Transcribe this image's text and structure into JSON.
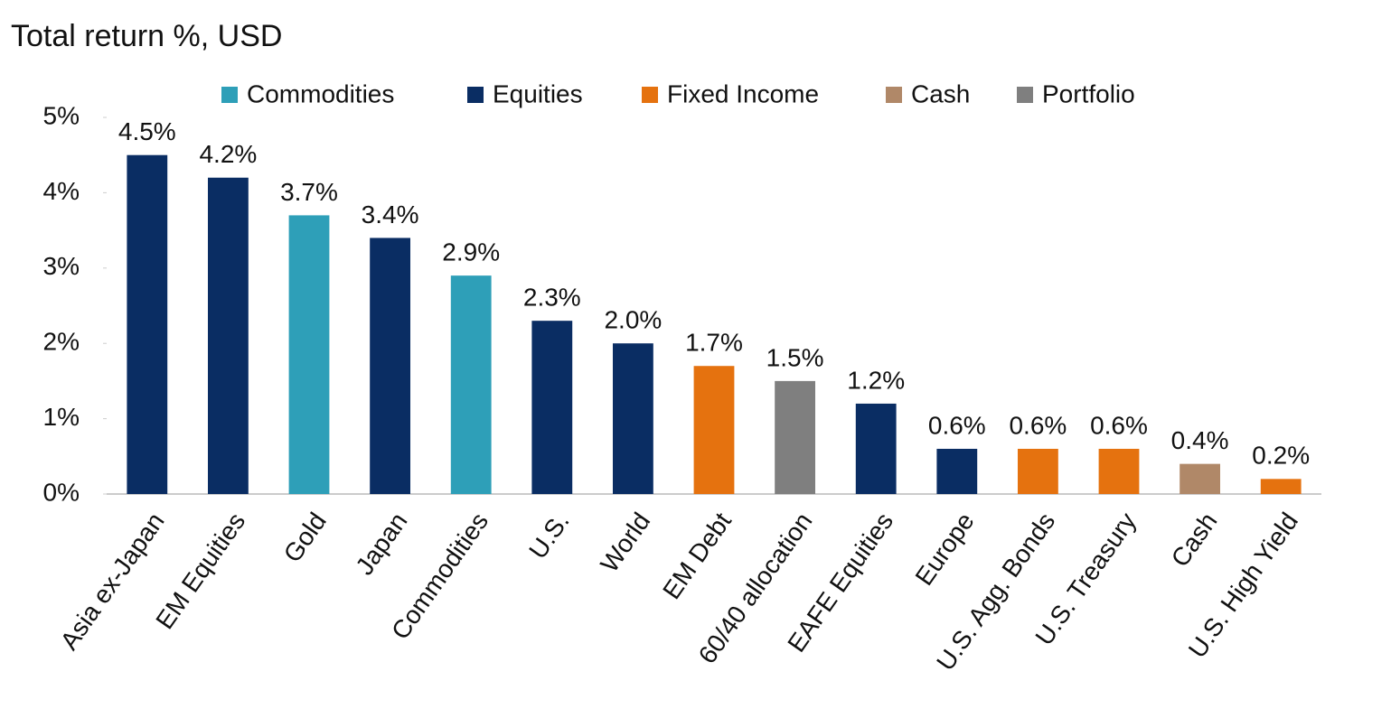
{
  "chart_data": {
    "type": "bar",
    "title": "Total return %, USD",
    "categories": [
      "Asia ex-Japan",
      "EM Equities",
      "Gold",
      "Japan",
      "Commodities",
      "U.S.",
      "World",
      "EM Debt",
      "60/40 allocation",
      "EAFE Equities",
      "Europe",
      "U.S. Agg. Bonds",
      "U.S. Treasury",
      "Cash",
      "U.S. High Yield"
    ],
    "series": [
      {
        "name": "Commodities",
        "color": "#2e9fb8",
        "values": [
          null,
          null,
          3.7,
          null,
          2.9,
          null,
          null,
          null,
          null,
          null,
          null,
          null,
          null,
          null,
          null
        ],
        "value_labels": [
          null,
          null,
          "3.7%",
          null,
          "2.9%",
          null,
          null,
          null,
          null,
          null,
          null,
          null,
          null,
          null,
          null
        ]
      },
      {
        "name": "Equities",
        "color": "#0a2d63",
        "values": [
          4.5,
          4.2,
          null,
          3.4,
          null,
          2.3,
          2.0,
          null,
          null,
          1.2,
          0.6,
          null,
          null,
          null,
          null
        ],
        "value_labels": [
          "4.5%",
          "4.2%",
          null,
          "3.4%",
          null,
          "2.3%",
          "2.0%",
          null,
          null,
          "1.2%",
          "0.6%",
          null,
          null,
          null,
          null
        ]
      },
      {
        "name": "Fixed Income",
        "color": "#e5720f",
        "values": [
          null,
          null,
          null,
          null,
          null,
          null,
          null,
          1.7,
          null,
          null,
          null,
          0.6,
          0.6,
          null,
          0.2
        ],
        "value_labels": [
          null,
          null,
          null,
          null,
          null,
          null,
          null,
          "1.7%",
          null,
          null,
          null,
          "0.6%",
          "0.6%",
          null,
          "0.2%"
        ]
      },
      {
        "name": "Cash",
        "color": "#b08868",
        "values": [
          null,
          null,
          null,
          null,
          null,
          null,
          null,
          null,
          null,
          null,
          null,
          null,
          null,
          0.4,
          null
        ],
        "value_labels": [
          null,
          null,
          null,
          null,
          null,
          null,
          null,
          null,
          null,
          null,
          null,
          null,
          null,
          "0.4%",
          null
        ]
      },
      {
        "name": "Portfolio",
        "color": "#7f7f7f",
        "values": [
          null,
          null,
          null,
          null,
          null,
          null,
          null,
          null,
          1.5,
          null,
          null,
          null,
          null,
          null,
          null
        ],
        "value_labels": [
          null,
          null,
          null,
          null,
          null,
          null,
          null,
          null,
          "1.5%",
          null,
          null,
          null,
          null,
          null,
          null
        ]
      }
    ],
    "ylim": [
      0,
      5
    ],
    "yticks": [
      {
        "value": 0,
        "label": "0%"
      },
      {
        "value": 1,
        "label": "1%"
      },
      {
        "value": 2,
        "label": "2%"
      },
      {
        "value": 3,
        "label": "3%"
      },
      {
        "value": 4,
        "label": "4%"
      },
      {
        "value": 5,
        "label": "5%"
      }
    ],
    "grid": false
  }
}
